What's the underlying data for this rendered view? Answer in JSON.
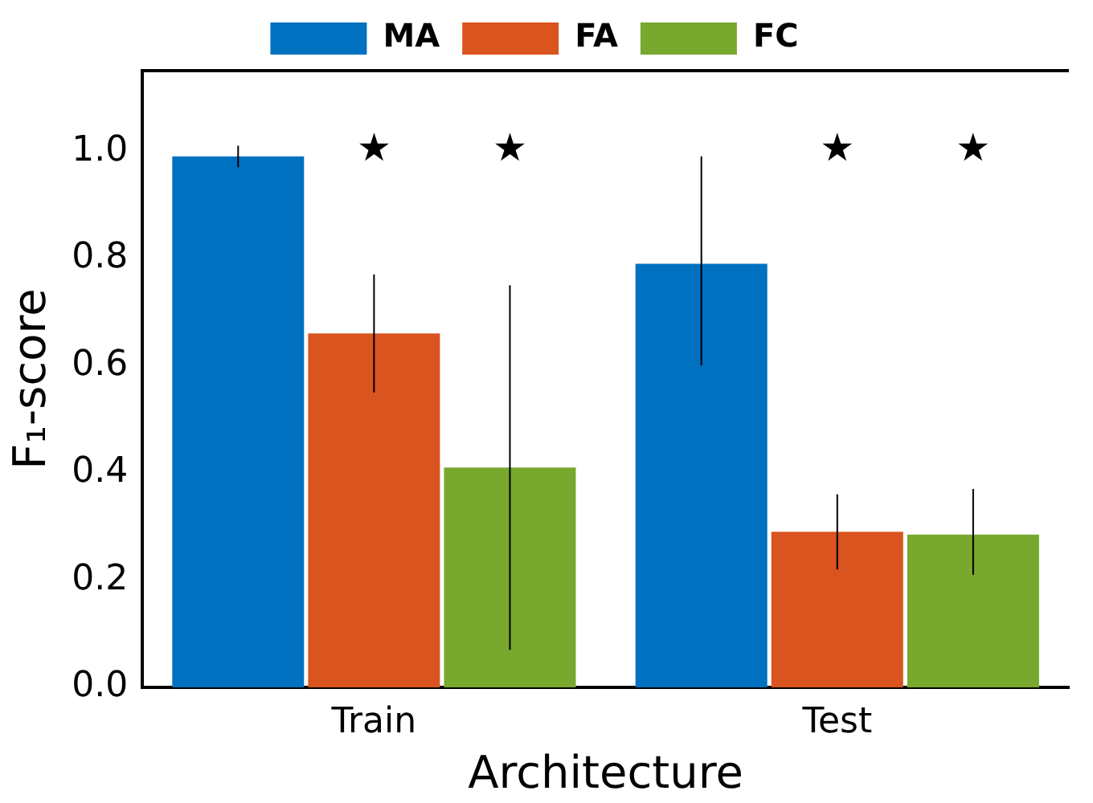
{
  "chart_data": {
    "type": "bar",
    "xlabel": "Architecture",
    "ylabel": "F₁-score",
    "categories": [
      "Train",
      "Test"
    ],
    "series": [
      {
        "name": "MA",
        "color": "#0070c0",
        "values": [
          0.99,
          0.79
        ],
        "errors": [
          [
            0.97,
            1.01
          ],
          [
            0.6,
            0.99
          ]
        ]
      },
      {
        "name": "FA",
        "color": "#d9541e",
        "values": [
          0.66,
          0.29
        ],
        "errors": [
          [
            0.55,
            0.77
          ],
          [
            0.22,
            0.36
          ]
        ]
      },
      {
        "name": "FC",
        "color": "#78a82e",
        "values": [
          0.41,
          0.285
        ],
        "errors": [
          [
            0.07,
            0.75
          ],
          [
            0.21,
            0.37
          ]
        ]
      }
    ],
    "ylim": [
      0,
      1.15
    ],
    "yticks": [
      {
        "value": 0,
        "label": "0.0"
      },
      0.2,
      0.4,
      0.6,
      0.8,
      {
        "value": 1,
        "label": "1.0"
      }
    ],
    "annotations": [
      "★",
      "★",
      "★",
      "★"
    ],
    "legend": "top",
    "grid": false
  }
}
